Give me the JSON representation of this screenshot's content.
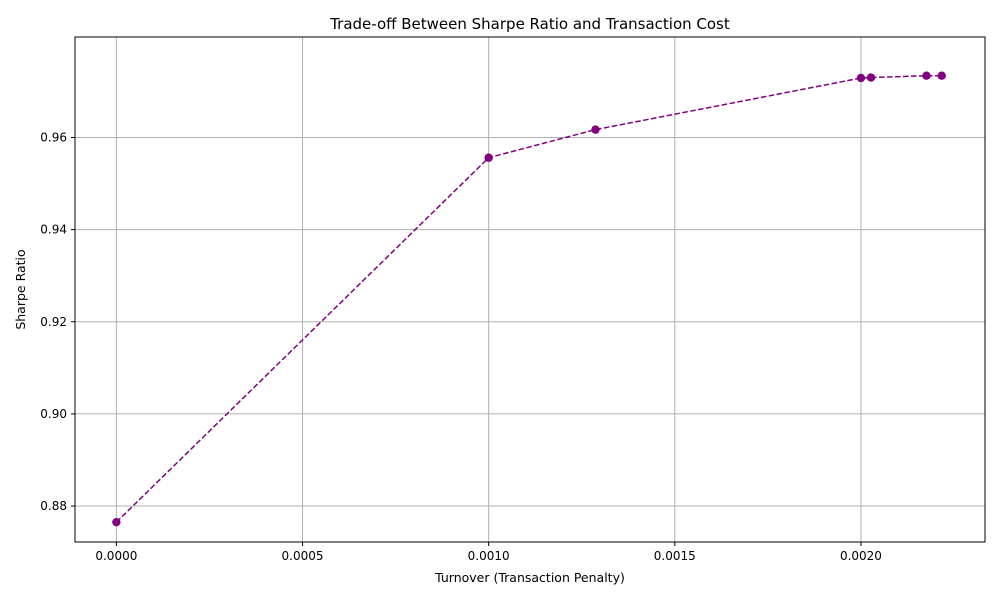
{
  "chart_data": {
    "type": "line",
    "title": "Trade-off Between Sharpe Ratio and Transaction Cost",
    "xlabel": "Turnover (Transaction Penalty)",
    "ylabel": "Sharpe Ratio",
    "xlim": [
      -0.0001111,
      0.0023332
    ],
    "ylim": [
      0.8722,
      0.9818
    ],
    "xticks": [
      0.0,
      0.0005,
      0.001,
      0.0015,
      0.002
    ],
    "xtick_labels": [
      "0.0000",
      "0.0005",
      "0.0010",
      "0.0015",
      "0.0020"
    ],
    "yticks": [
      0.88,
      0.9,
      0.92,
      0.94,
      0.96
    ],
    "ytick_labels": [
      "0.88",
      "0.90",
      "0.92",
      "0.94",
      "0.96"
    ],
    "grid": true,
    "series": [
      {
        "color": "#800080",
        "line_style": "dashed",
        "marker": "circle",
        "x": [
          0.0,
          0.001,
          0.001287,
          0.002,
          0.002027,
          0.002176,
          0.002217
        ],
        "y": [
          0.8765,
          0.9556,
          0.9617,
          0.9729,
          0.973,
          0.9734,
          0.9734
        ]
      }
    ]
  }
}
